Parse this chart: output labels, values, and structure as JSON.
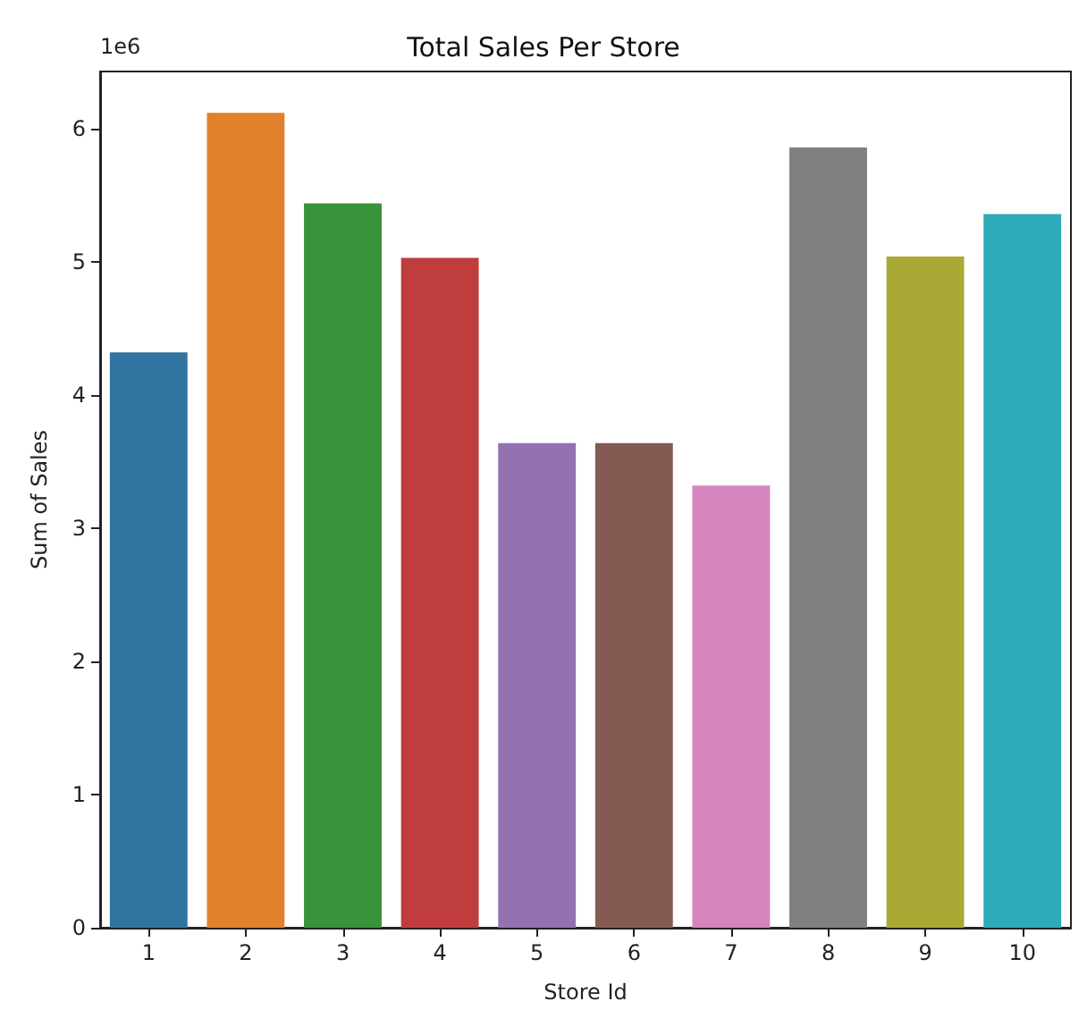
{
  "chart_data": {
    "type": "bar",
    "title": "Total Sales Per Store",
    "xlabel": "Store Id",
    "ylabel": "Sum of Sales",
    "annotations": [
      "1e6"
    ],
    "categories": [
      "1",
      "2",
      "3",
      "4",
      "5",
      "6",
      "7",
      "8",
      "9",
      "10"
    ],
    "values": [
      4.32,
      6.12,
      5.44,
      5.03,
      3.64,
      3.64,
      3.32,
      5.86,
      5.04,
      5.36
    ],
    "colors": [
      "#3274a1",
      "#e1812c",
      "#3a923a",
      "#c03d3e",
      "#9372b2",
      "#845b53",
      "#d684bd",
      "#7f7f7f",
      "#a9aa35",
      "#2eabb8"
    ],
    "ylim": [
      0,
      6.43
    ],
    "yticks": [
      0,
      1,
      2,
      3,
      4,
      5,
      6
    ],
    "grid": false
  }
}
